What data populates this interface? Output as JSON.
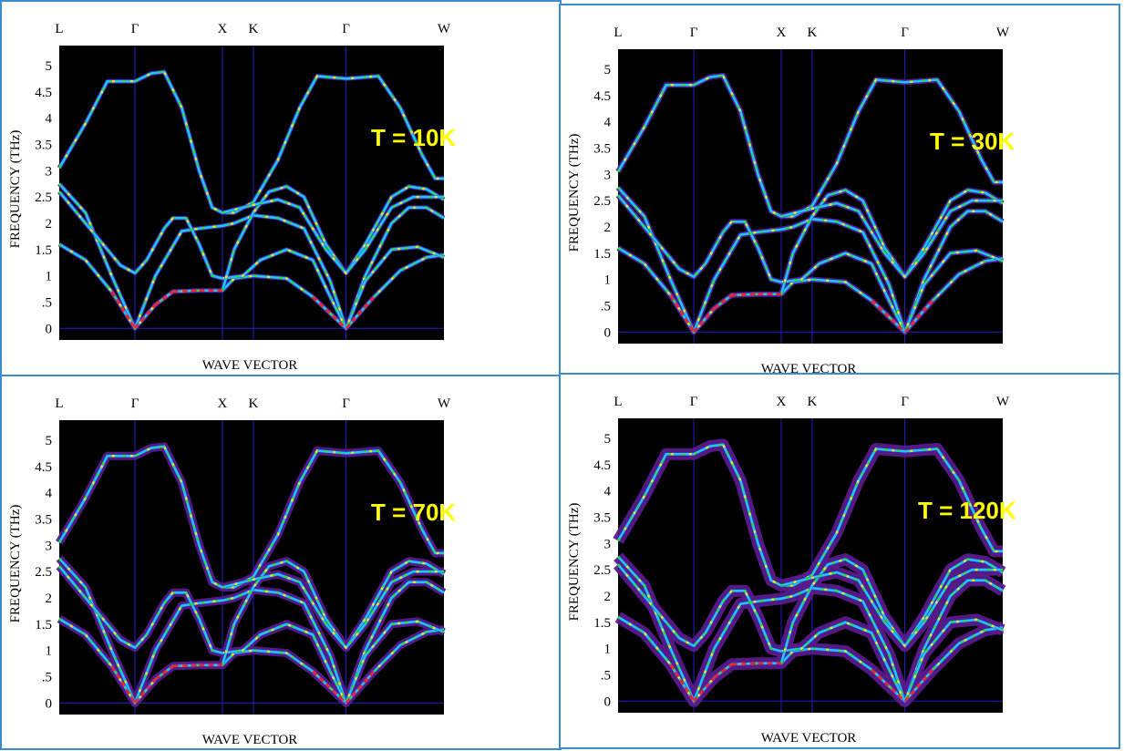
{
  "chart_data": {
    "type": "line",
    "xlabel": "WAVE VECTOR",
    "ylabel": "FREQUENCY (THz)",
    "ylim": [
      -0.22,
      5.38
    ],
    "xlim": [
      0,
      4.4
    ],
    "yticks": [
      0,
      0.5,
      1,
      1.5,
      2,
      2.5,
      3,
      3.5,
      4,
      4.5,
      5
    ],
    "ytick_labels": [
      "0",
      ".5",
      "1",
      "1.5",
      "2",
      "2.5",
      "3",
      "3.5",
      "4",
      "4.5",
      "5"
    ],
    "symmetry_points": [
      {
        "label": "L",
        "x": 0
      },
      {
        "label": "Γ",
        "x": 0.866
      },
      {
        "label": "X",
        "x": 1.866
      },
      {
        "label": "K",
        "x": 2.22
      },
      {
        "label": "Γ",
        "x": 3.28
      },
      {
        "label": "W",
        "x": 4.4
      }
    ],
    "colors": {
      "background": "#000000",
      "grid": "#2020c8",
      "halo": "#5a1a8a",
      "band": "#20c8e8",
      "annotation": "#ffff00",
      "border": "#3c8cd0"
    },
    "branches": [
      [
        [
          0,
          3.05
        ],
        [
          0.3,
          3.9
        ],
        [
          0.55,
          4.7
        ],
        [
          0.866,
          4.7
        ],
        [
          1.05,
          4.85
        ],
        [
          1.2,
          4.88
        ],
        [
          1.4,
          4.2
        ],
        [
          1.6,
          3.0
        ],
        [
          1.75,
          2.3
        ],
        [
          1.866,
          2.2
        ],
        [
          2.0,
          2.2
        ],
        [
          2.22,
          2.4
        ],
        [
          2.5,
          3.2
        ],
        [
          2.75,
          4.2
        ],
        [
          2.95,
          4.8
        ],
        [
          3.28,
          4.75
        ],
        [
          3.65,
          4.8
        ],
        [
          3.9,
          4.2
        ],
        [
          4.15,
          3.3
        ],
        [
          4.3,
          2.85
        ],
        [
          4.4,
          2.85
        ]
      ],
      [
        [
          0,
          2.75
        ],
        [
          0.3,
          2.2
        ],
        [
          0.6,
          1.0
        ],
        [
          0.866,
          0
        ],
        [
          1.1,
          1.0
        ],
        [
          1.4,
          1.85
        ],
        [
          1.6,
          1.9
        ],
        [
          1.866,
          1.95
        ],
        [
          2.0,
          2.0
        ],
        [
          2.22,
          2.15
        ],
        [
          2.5,
          2.1
        ],
        [
          2.8,
          1.9
        ],
        [
          3.1,
          0.9
        ],
        [
          3.28,
          0
        ],
        [
          3.5,
          1.0
        ],
        [
          3.8,
          2.0
        ],
        [
          4.0,
          2.3
        ],
        [
          4.2,
          2.3
        ],
        [
          4.4,
          2.1
        ]
      ],
      [
        [
          0,
          1.6
        ],
        [
          0.3,
          1.3
        ],
        [
          0.6,
          0.7
        ],
        [
          0.866,
          0
        ],
        [
          1.1,
          0.45
        ],
        [
          1.3,
          0.7
        ],
        [
          1.6,
          0.72
        ],
        [
          1.866,
          0.72
        ],
        [
          2.0,
          0.95
        ],
        [
          2.22,
          1.0
        ],
        [
          2.6,
          0.95
        ],
        [
          2.9,
          0.6
        ],
        [
          3.28,
          0
        ],
        [
          3.6,
          0.6
        ],
        [
          3.9,
          1.1
        ],
        [
          4.2,
          1.35
        ],
        [
          4.4,
          1.4
        ]
      ],
      [
        [
          0,
          2.6
        ],
        [
          0.4,
          1.8
        ],
        [
          0.7,
          1.2
        ],
        [
          0.866,
          1.05
        ],
        [
          1.0,
          1.3
        ],
        [
          1.2,
          1.9
        ],
        [
          1.3,
          2.1
        ],
        [
          1.45,
          2.1
        ],
        [
          1.6,
          1.6
        ],
        [
          1.75,
          1.0
        ],
        [
          1.866,
          0.95
        ],
        [
          2.1,
          1.0
        ],
        [
          2.3,
          1.3
        ],
        [
          2.6,
          1.5
        ],
        [
          2.9,
          1.3
        ],
        [
          3.1,
          0.6
        ],
        [
          3.28,
          0
        ],
        [
          3.5,
          0.9
        ],
        [
          3.8,
          1.5
        ],
        [
          4.1,
          1.55
        ],
        [
          4.4,
          1.35
        ]
      ],
      [
        [
          1.866,
          0.72
        ],
        [
          2.0,
          1.5
        ],
        [
          2.22,
          2.2
        ],
        [
          2.4,
          2.6
        ],
        [
          2.6,
          2.7
        ],
        [
          2.8,
          2.5
        ],
        [
          3.05,
          1.6
        ],
        [
          3.28,
          1.05
        ],
        [
          3.5,
          1.6
        ],
        [
          3.8,
          2.5
        ],
        [
          4.0,
          2.7
        ],
        [
          4.2,
          2.65
        ],
        [
          4.4,
          2.45
        ]
      ],
      [
        [
          1.866,
          2.2
        ],
        [
          2.22,
          2.35
        ],
        [
          2.5,
          2.45
        ],
        [
          2.75,
          2.3
        ],
        [
          3.05,
          1.5
        ],
        [
          3.28,
          1.05
        ],
        [
          3.5,
          1.5
        ],
        [
          3.8,
          2.3
        ],
        [
          4.05,
          2.5
        ],
        [
          4.4,
          2.5
        ]
      ]
    ],
    "panels": [
      {
        "annotation": "T = 10K",
        "temperature_K": 10
      },
      {
        "annotation": "T = 30K",
        "temperature_K": 30
      },
      {
        "annotation": "T = 70K",
        "temperature_K": 70
      },
      {
        "annotation": "T = 120K",
        "temperature_K": 120
      }
    ]
  }
}
